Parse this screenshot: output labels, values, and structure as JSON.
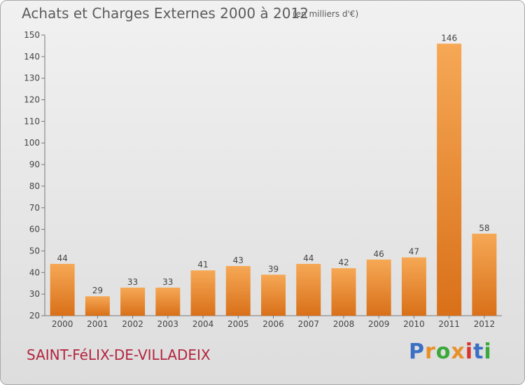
{
  "header": {
    "title": "Achats et Charges Externes 2000 à 2012",
    "unit": "(en milliers d'€)"
  },
  "footer": {
    "commune": "SAINT-FéLIX-DE-VILLADEIX",
    "logo_text": "Proxiti",
    "logo_colors": [
      "#3a6fc4",
      "#e8902a",
      "#3aa83a",
      "#e8902a",
      "#d8332a",
      "#3a6fc4",
      "#3aa83a"
    ]
  },
  "chart_data": {
    "type": "bar",
    "categories": [
      "2000",
      "2001",
      "2002",
      "2003",
      "2004",
      "2005",
      "2006",
      "2007",
      "2008",
      "2009",
      "2010",
      "2011",
      "2012"
    ],
    "values": [
      44,
      29,
      33,
      33,
      41,
      43,
      39,
      44,
      42,
      46,
      47,
      146,
      58
    ],
    "title": "Achats et Charges Externes 2000 à 2012",
    "ylim": [
      20,
      150
    ],
    "yticks": [
      20,
      30,
      40,
      50,
      60,
      70,
      80,
      90,
      100,
      110,
      120,
      130,
      140,
      150
    ],
    "grid": false,
    "data_labels": true,
    "colors": {
      "bar_light": "#f6a855",
      "bar_dark": "#d97019",
      "axis": "#777777",
      "text": "#444444"
    }
  }
}
